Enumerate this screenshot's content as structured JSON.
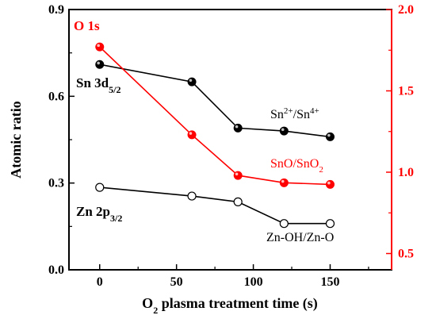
{
  "chart_data": {
    "type": "line",
    "x": [
      0,
      60,
      90,
      120,
      150
    ],
    "xlim": [
      -20,
      190
    ],
    "xticks": [
      0,
      50,
      100,
      150
    ],
    "xticks_minor": [
      25,
      75,
      125,
      175
    ],
    "xlabel": {
      "prefix": "O",
      "sub": "2",
      "rest": " plasma treatment time (s)"
    },
    "ylabel_left": "Atomic ratio",
    "ylim_left": [
      0.0,
      0.9
    ],
    "yticks_left": [
      "0.0",
      "0.3",
      "0.6",
      "0.9"
    ],
    "ylim_right": [
      0.4,
      2.0
    ],
    "yticks_right": [
      "0.5",
      "1.0",
      "1.5",
      "2.0"
    ],
    "grid": false,
    "series": [
      {
        "name": "Sn 3d5/2",
        "axis": "left",
        "marker": "filled-black",
        "values": [
          0.71,
          0.65,
          0.49,
          0.48,
          0.46
        ]
      },
      {
        "name": "Zn 2p3/2",
        "axis": "left",
        "marker": "open",
        "values": [
          0.285,
          0.255,
          0.235,
          0.16,
          0.16
        ]
      },
      {
        "name": "O 1s",
        "axis": "right",
        "marker": "filled-red",
        "values": [
          1.77,
          1.23,
          0.98,
          0.935,
          0.925
        ]
      }
    ],
    "annotations": {
      "o1s": "O 1s",
      "sn_main": "Sn 3d",
      "sn_sub": "5/2",
      "zn_main": "Zn 2p",
      "zn_sub": "3/2",
      "sn_ratio": {
        "a": "Sn",
        "a_sup": "2+",
        "slash": "/Sn",
        "b_sup": "4+"
      },
      "sno": {
        "a": "SnO/SnO",
        "sub": "2"
      },
      "zn_ratio": "Zn-OH/Zn-O"
    },
    "colors": {
      "left_axis": "#000000",
      "right_axis": "#ff0000",
      "sn": "#000000",
      "zn": "#000000",
      "o": "#ff0000"
    }
  }
}
